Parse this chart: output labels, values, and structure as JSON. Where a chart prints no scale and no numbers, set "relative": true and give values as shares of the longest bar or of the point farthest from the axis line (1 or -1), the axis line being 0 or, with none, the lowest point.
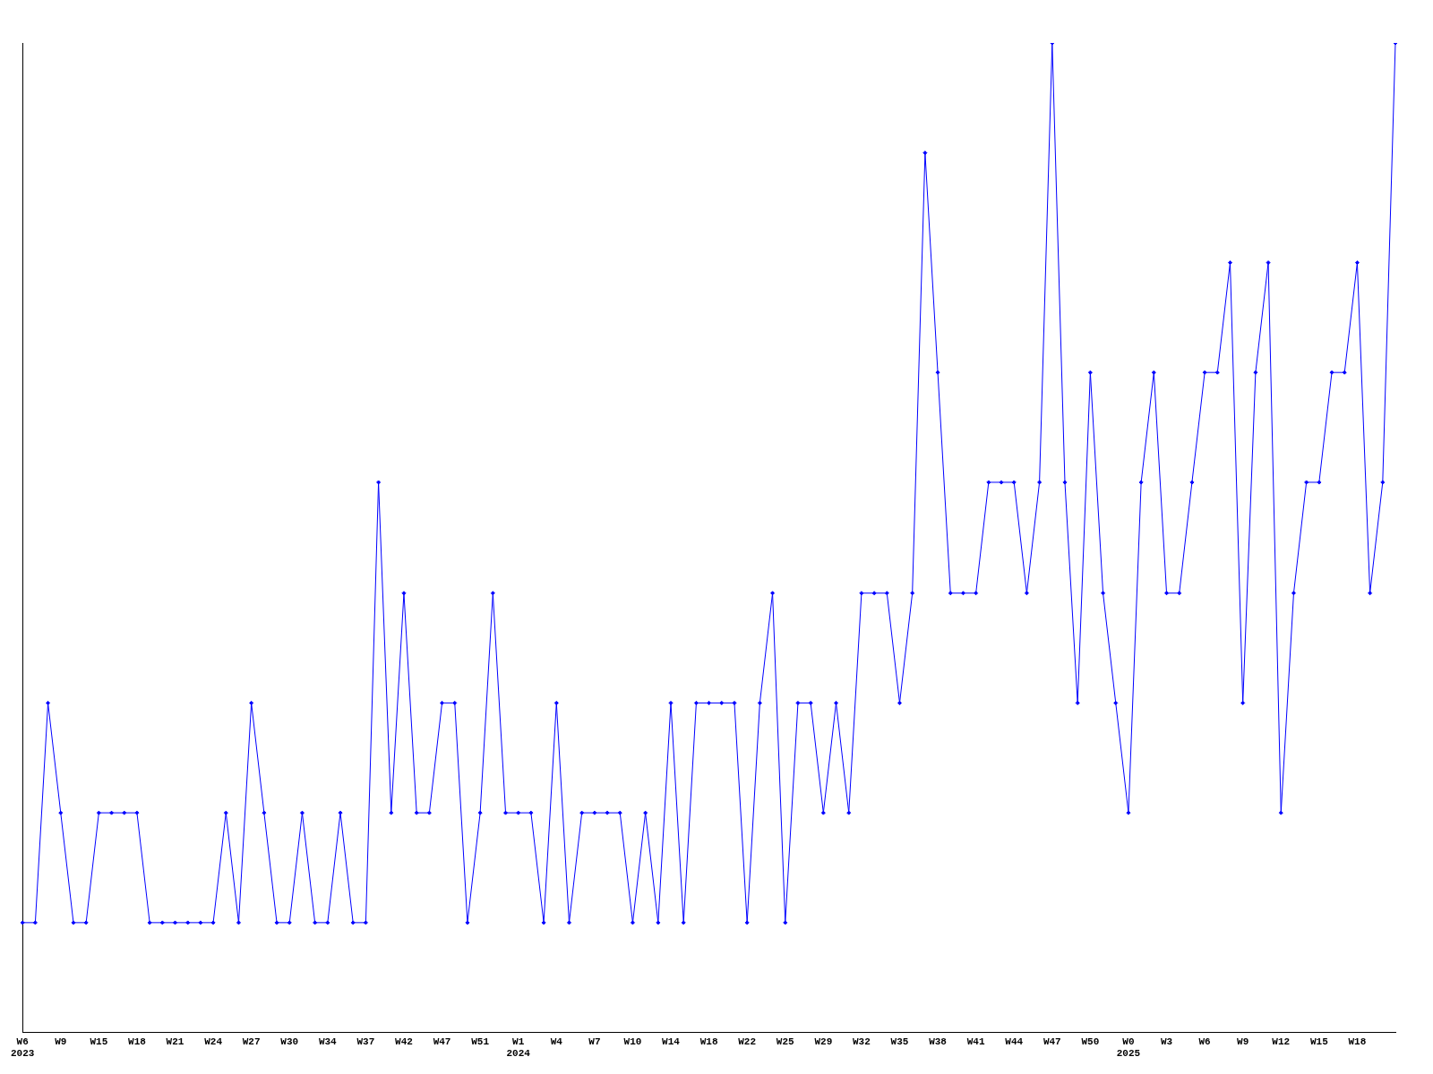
{
  "chart_data": {
    "type": "line",
    "relative": true,
    "color": "#0000ff",
    "marker": "diamond",
    "grid": false,
    "legend": false,
    "categories": [
      "W6\n2023",
      null,
      null,
      "W9",
      null,
      null,
      "W15",
      null,
      null,
      "W18",
      null,
      null,
      "W21",
      null,
      null,
      "W24",
      null,
      null,
      "W27",
      null,
      null,
      "W30",
      null,
      null,
      "W34",
      null,
      null,
      "W37",
      null,
      null,
      "W42",
      null,
      null,
      "W47",
      null,
      null,
      "W51",
      null,
      null,
      "W1\n2024",
      null,
      null,
      "W4",
      null,
      null,
      "W7",
      null,
      null,
      "W10",
      null,
      null,
      "W14",
      null,
      null,
      "W18",
      null,
      null,
      "W22",
      null,
      null,
      "W25",
      null,
      null,
      "W29",
      null,
      null,
      "W32",
      null,
      null,
      "W35",
      null,
      null,
      "W38",
      null,
      null,
      "W41",
      null,
      null,
      "W44",
      null,
      null,
      "W47",
      null,
      null,
      "W50",
      null,
      null,
      "W0\n2025",
      null,
      null,
      "W3",
      null,
      null,
      "W6",
      null,
      null,
      "W9",
      null,
      null,
      "W12",
      null,
      null,
      "W15",
      null,
      null,
      "W18",
      null,
      null,
      null
    ],
    "values": [
      0.111,
      0.111,
      0.333,
      0.222,
      0.111,
      0.111,
      0.222,
      0.222,
      0.222,
      0.222,
      0.111,
      0.111,
      0.111,
      0.111,
      0.111,
      0.111,
      0.222,
      0.111,
      0.333,
      0.222,
      0.111,
      0.111,
      0.222,
      0.111,
      0.111,
      0.222,
      0.111,
      0.111,
      0.556,
      0.222,
      0.444,
      0.222,
      0.222,
      0.333,
      0.333,
      0.111,
      0.222,
      0.444,
      0.222,
      0.222,
      0.222,
      0.111,
      0.333,
      0.111,
      0.222,
      0.222,
      0.222,
      0.222,
      0.111,
      0.222,
      0.111,
      0.333,
      0.111,
      0.333,
      0.333,
      0.333,
      0.333,
      0.111,
      0.333,
      0.444,
      0.111,
      0.333,
      0.333,
      0.222,
      0.333,
      0.222,
      0.444,
      0.444,
      0.444,
      0.333,
      0.444,
      0.889,
      0.667,
      0.444,
      0.444,
      0.444,
      0.556,
      0.556,
      0.556,
      0.444,
      0.556,
      1,
      0.556,
      0.333,
      0.667,
      0.444,
      0.333,
      0.222,
      0.556,
      0.667,
      0.444,
      0.444,
      0.556,
      0.667,
      0.667,
      0.778,
      0.333,
      0.667,
      0.778,
      0.222,
      0.444,
      0.556,
      0.556,
      0.667,
      0.667,
      0.778,
      0.444,
      0.556,
      1
    ]
  }
}
